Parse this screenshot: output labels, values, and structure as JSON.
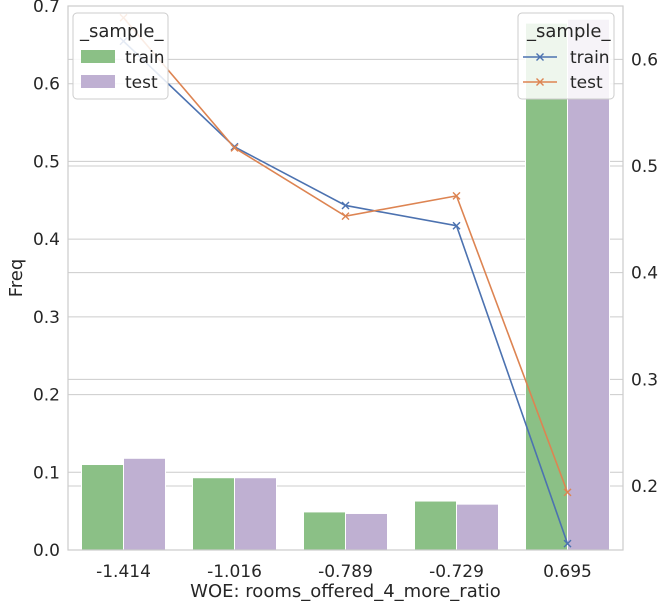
{
  "chart_data": {
    "type": "bar+line",
    "xlabel": "WOE: rooms_offered_4_more_ratio",
    "ylabel": "Freq",
    "categories": [
      "-1.414",
      "-1.016",
      "-0.789",
      "-0.729",
      "0.695"
    ],
    "left_axis": {
      "ylim": [
        0,
        0.7
      ],
      "ticks": [
        "0.0",
        "0.1",
        "0.2",
        "0.3",
        "0.4",
        "0.5",
        "0.6",
        "0.7"
      ]
    },
    "right_axis": {
      "ylim": [
        0.14,
        0.65
      ],
      "ticks": [
        "0.2",
        "0.3",
        "0.4",
        "0.5",
        "0.6"
      ]
    },
    "bar_series": [
      {
        "name": "train",
        "color": "#8bc086",
        "values": [
          0.11,
          0.093,
          0.049,
          0.063,
          0.678
        ]
      },
      {
        "name": "test",
        "color": "#bfb0d2",
        "values": [
          0.118,
          0.093,
          0.047,
          0.059,
          0.683
        ]
      }
    ],
    "line_series": [
      {
        "name": "train",
        "color": "#4c72b0",
        "marker": "x",
        "values": [
          0.617,
          0.518,
          0.463,
          0.444,
          0.146
        ]
      },
      {
        "name": "test",
        "color": "#dd8452",
        "marker": "x",
        "values": [
          0.639,
          0.517,
          0.453,
          0.472,
          0.194
        ]
      }
    ],
    "legend_left": {
      "title": "_sample_",
      "position": "top-left",
      "entries": [
        "train",
        "test"
      ]
    },
    "legend_right": {
      "title": "_sample_",
      "position": "top-right",
      "entries": [
        "train",
        "test"
      ]
    },
    "grid": true
  }
}
